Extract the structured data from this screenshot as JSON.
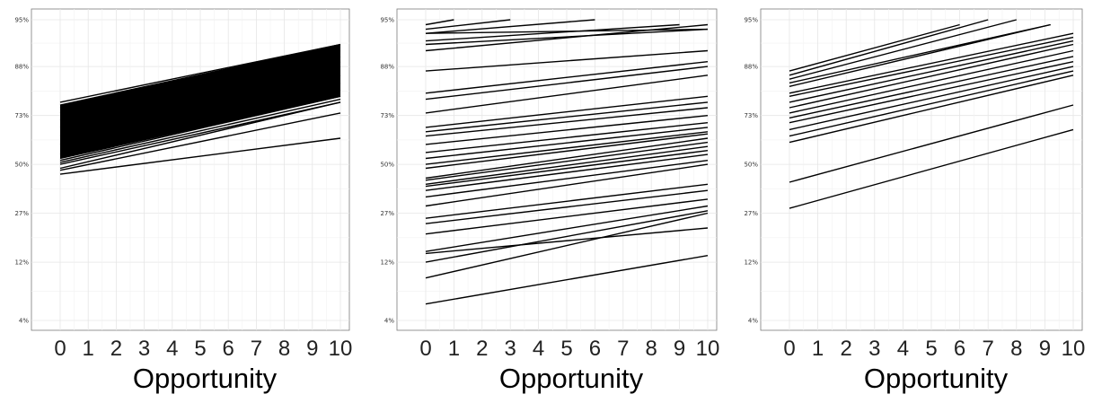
{
  "chart_data": [
    {
      "type": "line",
      "xlabel": "Opportunity",
      "x_ticks": [
        "0",
        "1",
        "2",
        "3",
        "4",
        "5",
        "6",
        "7",
        "8",
        "9",
        "10"
      ],
      "y_ticks": [
        "4%",
        "12%",
        "27%",
        "50%",
        "73%",
        "88%",
        "95%"
      ],
      "y_scale": "logit",
      "xlim": [
        0,
        10
      ],
      "ylim": [
        0.04,
        0.95
      ],
      "grid": true,
      "line_color": "#000000",
      "band": {
        "lower_start": 0.53,
        "lower_end": 0.8,
        "upper_start": 0.77,
        "upper_end": 0.92
      },
      "series": [
        {
          "x": [
            0,
            10
          ],
          "y": [
            0.45,
            0.63
          ]
        },
        {
          "x": [
            0,
            10
          ],
          "y": [
            0.47,
            0.74
          ]
        },
        {
          "x": [
            0,
            10
          ],
          "y": [
            0.48,
            0.78
          ]
        },
        {
          "x": [
            0,
            10
          ],
          "y": [
            0.5,
            0.78
          ]
        },
        {
          "x": [
            0,
            10
          ],
          "y": [
            0.51,
            0.79
          ]
        },
        {
          "x": [
            0,
            10
          ],
          "y": [
            0.52,
            0.8
          ]
        },
        {
          "x": [
            0,
            10
          ],
          "y": [
            0.53,
            0.8
          ]
        },
        {
          "x": [
            0,
            10
          ],
          "y": [
            0.55,
            0.82
          ]
        },
        {
          "x": [
            0,
            10
          ],
          "y": [
            0.6,
            0.84
          ]
        },
        {
          "x": [
            0,
            10
          ],
          "y": [
            0.64,
            0.86
          ]
        },
        {
          "x": [
            0,
            10
          ],
          "y": [
            0.68,
            0.88
          ]
        },
        {
          "x": [
            0,
            10
          ],
          "y": [
            0.71,
            0.89
          ]
        },
        {
          "x": [
            0,
            10
          ],
          "y": [
            0.74,
            0.9
          ]
        },
        {
          "x": [
            0,
            10
          ],
          "y": [
            0.76,
            0.91
          ]
        },
        {
          "x": [
            0,
            10
          ],
          "y": [
            0.77,
            0.92
          ]
        },
        {
          "x": [
            0,
            10
          ],
          "y": [
            0.78,
            0.92
          ]
        }
      ]
    },
    {
      "type": "line",
      "xlabel": "Opportunity",
      "x_ticks": [
        "0",
        "1",
        "2",
        "3",
        "4",
        "5",
        "6",
        "7",
        "8",
        "9",
        "10"
      ],
      "y_ticks": [
        "4%",
        "12%",
        "27%",
        "50%",
        "73%",
        "88%",
        "95%"
      ],
      "y_scale": "logit",
      "xlim": [
        0,
        10
      ],
      "ylim": [
        0.04,
        0.95
      ],
      "grid": true,
      "line_color": "#000000",
      "series": [
        {
          "x": [
            0,
            10
          ],
          "y": [
            0.055,
            0.135
          ]
        },
        {
          "x": [
            0,
            10
          ],
          "y": [
            0.09,
            0.27
          ]
        },
        {
          "x": [
            0,
            10
          ],
          "y": [
            0.12,
            0.28
          ]
        },
        {
          "x": [
            0,
            10
          ],
          "y": [
            0.14,
            0.215
          ]
        },
        {
          "x": [
            0,
            10
          ],
          "y": [
            0.145,
            0.3
          ]
        },
        {
          "x": [
            0,
            10
          ],
          "y": [
            0.195,
            0.33
          ]
        },
        {
          "x": [
            0,
            10
          ],
          "y": [
            0.23,
            0.37
          ]
        },
        {
          "x": [
            0,
            10
          ],
          "y": [
            0.25,
            0.4
          ]
        },
        {
          "x": [
            0,
            10
          ],
          "y": [
            0.3,
            0.5
          ]
        },
        {
          "x": [
            0,
            10
          ],
          "y": [
            0.34,
            0.52
          ]
        },
        {
          "x": [
            0,
            10
          ],
          "y": [
            0.37,
            0.55
          ]
        },
        {
          "x": [
            0,
            10
          ],
          "y": [
            0.39,
            0.57
          ]
        },
        {
          "x": [
            0,
            10
          ],
          "y": [
            0.4,
            0.59
          ]
        },
        {
          "x": [
            0,
            10
          ],
          "y": [
            0.42,
            0.61
          ]
        },
        {
          "x": [
            0,
            10
          ],
          "y": [
            0.43,
            0.63
          ]
        },
        {
          "x": [
            0,
            10
          ],
          "y": [
            0.48,
            0.65
          ]
        },
        {
          "x": [
            0,
            10
          ],
          "y": [
            0.5,
            0.66
          ]
        },
        {
          "x": [
            0,
            10
          ],
          "y": [
            0.53,
            0.68
          ]
        },
        {
          "x": [
            0,
            10
          ],
          "y": [
            0.56,
            0.7
          ]
        },
        {
          "x": [
            0,
            10
          ],
          "y": [
            0.6,
            0.73
          ]
        },
        {
          "x": [
            0,
            10
          ],
          "y": [
            0.64,
            0.76
          ]
        },
        {
          "x": [
            0,
            10
          ],
          "y": [
            0.66,
            0.78
          ]
        },
        {
          "x": [
            0,
            10
          ],
          "y": [
            0.68,
            0.8
          ]
        },
        {
          "x": [
            0,
            10
          ],
          "y": [
            0.74,
            0.86
          ]
        },
        {
          "x": [
            0,
            10
          ],
          "y": [
            0.79,
            0.88
          ]
        },
        {
          "x": [
            0,
            10
          ],
          "y": [
            0.81,
            0.89
          ]
        },
        {
          "x": [
            0,
            10
          ],
          "y": [
            0.87,
            0.91
          ]
        },
        {
          "x": [
            0,
            10
          ],
          "y": [
            0.91,
            0.945
          ]
        },
        {
          "x": [
            0,
            10
          ],
          "y": [
            0.92,
            0.94
          ]
        },
        {
          "x": [
            0,
            10
          ],
          "y": [
            0.935,
            0.94
          ]
        },
        {
          "x": [
            0,
            3
          ],
          "y": [
            0.94,
            0.95
          ]
        },
        {
          "x": [
            0,
            6
          ],
          "y": [
            0.935,
            0.95
          ]
        },
        {
          "x": [
            0,
            9
          ],
          "y": [
            0.925,
            0.945
          ]
        },
        {
          "x": [
            0,
            1
          ],
          "y": [
            0.945,
            0.95
          ]
        }
      ]
    },
    {
      "type": "line",
      "xlabel": "Opportunity",
      "x_ticks": [
        "0",
        "1",
        "2",
        "3",
        "4",
        "5",
        "6",
        "7",
        "8",
        "9",
        "10"
      ],
      "y_ticks": [
        "4%",
        "12%",
        "27%",
        "50%",
        "73%",
        "88%",
        "95%"
      ],
      "y_scale": "logit",
      "xlim": [
        0,
        10
      ],
      "ylim": [
        0.04,
        0.95
      ],
      "grid": true,
      "line_color": "#000000",
      "series": [
        {
          "x": [
            0,
            10
          ],
          "y": [
            0.29,
            0.67
          ]
        },
        {
          "x": [
            0,
            10
          ],
          "y": [
            0.41,
            0.77
          ]
        },
        {
          "x": [
            0,
            10
          ],
          "y": [
            0.61,
            0.86
          ]
        },
        {
          "x": [
            0,
            10
          ],
          "y": [
            0.64,
            0.87
          ]
        },
        {
          "x": [
            0,
            10
          ],
          "y": [
            0.67,
            0.88
          ]
        },
        {
          "x": [
            0,
            10
          ],
          "y": [
            0.7,
            0.89
          ]
        },
        {
          "x": [
            0,
            10
          ],
          "y": [
            0.72,
            0.9
          ]
        },
        {
          "x": [
            0,
            10
          ],
          "y": [
            0.74,
            0.91
          ]
        },
        {
          "x": [
            0,
            10
          ],
          "y": [
            0.76,
            0.92
          ]
        },
        {
          "x": [
            0,
            10
          ],
          "y": [
            0.78,
            0.925
          ]
        },
        {
          "x": [
            0,
            10
          ],
          "y": [
            0.8,
            0.93
          ]
        },
        {
          "x": [
            0,
            10
          ],
          "y": [
            0.81,
            0.935
          ]
        },
        {
          "x": [
            0,
            9.2
          ],
          "y": [
            0.83,
            0.945
          ]
        },
        {
          "x": [
            0,
            9.2
          ],
          "y": [
            0.84,
            0.945
          ]
        },
        {
          "x": [
            0,
            7
          ],
          "y": [
            0.86,
            0.95
          ]
        },
        {
          "x": [
            0,
            8
          ],
          "y": [
            0.85,
            0.95
          ]
        },
        {
          "x": [
            0,
            6
          ],
          "y": [
            0.87,
            0.945
          ]
        }
      ]
    }
  ]
}
